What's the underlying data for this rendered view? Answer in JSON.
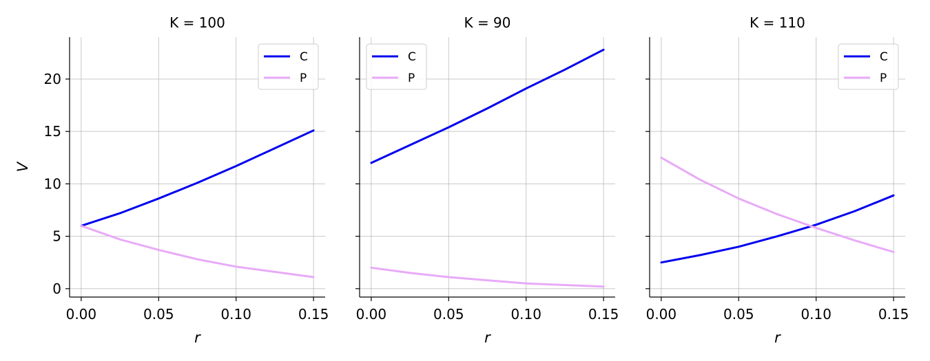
{
  "chart_data": [
    {
      "type": "line",
      "title": "K = 100",
      "xlabel": "r",
      "ylabel": "V",
      "xlim": [
        -0.0075,
        0.1575
      ],
      "ylim": [
        -0.8,
        24
      ],
      "xticks": [
        0.0,
        0.05,
        0.1,
        0.15
      ],
      "xtick_labels": [
        "0.00",
        "0.05",
        "0.10",
        "0.15"
      ],
      "yticks": [
        0,
        5,
        10,
        15,
        20
      ],
      "ytick_labels": [
        "0",
        "5",
        "10",
        "15",
        "20"
      ],
      "grid": true,
      "legend": "top-right",
      "x": [
        0.0,
        0.025,
        0.05,
        0.075,
        0.1,
        0.125,
        0.15
      ],
      "series": [
        {
          "name": "C",
          "color": "#0000ee",
          "values": [
            6.0,
            7.2,
            8.6,
            10.1,
            11.7,
            13.4,
            15.1
          ]
        },
        {
          "name": "P",
          "color": "#e8aaf8",
          "values": [
            6.0,
            4.7,
            3.7,
            2.8,
            2.1,
            1.6,
            1.1
          ]
        }
      ]
    },
    {
      "type": "line",
      "title": "K = 90",
      "xlabel": "r",
      "ylabel": "",
      "xlim": [
        -0.0075,
        0.1575
      ],
      "ylim": [
        -0.8,
        24
      ],
      "xticks": [
        0.0,
        0.05,
        0.1,
        0.15
      ],
      "xtick_labels": [
        "0.00",
        "0.05",
        "0.10",
        "0.15"
      ],
      "yticks": [
        0,
        5,
        10,
        15,
        20
      ],
      "ytick_labels": [],
      "grid": true,
      "legend": "top-left",
      "x": [
        0.0,
        0.025,
        0.05,
        0.075,
        0.1,
        0.125,
        0.15
      ],
      "series": [
        {
          "name": "C",
          "color": "#0000ee",
          "values": [
            12.0,
            13.7,
            15.4,
            17.2,
            19.1,
            20.9,
            22.8
          ]
        },
        {
          "name": "P",
          "color": "#e8aaf8",
          "values": [
            2.0,
            1.5,
            1.1,
            0.8,
            0.5,
            0.35,
            0.2
          ]
        }
      ]
    },
    {
      "type": "line",
      "title": "K = 110",
      "xlabel": "r",
      "ylabel": "",
      "xlim": [
        -0.0075,
        0.1575
      ],
      "ylim": [
        -0.8,
        24
      ],
      "xticks": [
        0.0,
        0.05,
        0.1,
        0.15
      ],
      "xtick_labels": [
        "0.00",
        "0.05",
        "0.10",
        "0.15"
      ],
      "yticks": [
        0,
        5,
        10,
        15,
        20
      ],
      "ytick_labels": [],
      "grid": true,
      "legend": "top-right",
      "x": [
        0.0,
        0.025,
        0.05,
        0.075,
        0.1,
        0.125,
        0.15
      ],
      "series": [
        {
          "name": "C",
          "color": "#0000ee",
          "values": [
            2.5,
            3.2,
            4.0,
            5.0,
            6.1,
            7.4,
            8.9
          ]
        },
        {
          "name": "P",
          "color": "#e8aaf8",
          "values": [
            12.5,
            10.4,
            8.6,
            7.1,
            5.8,
            4.6,
            3.5
          ]
        }
      ]
    }
  ]
}
